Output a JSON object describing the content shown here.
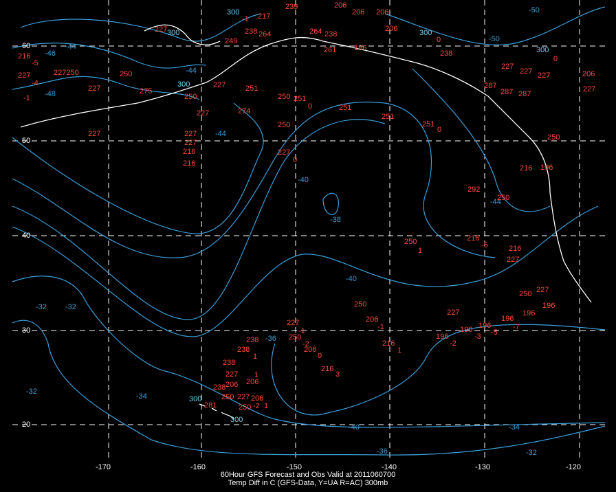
{
  "title": "60Hour GFS Forecast and Obs Valid at 2011060700",
  "subtitle": "Temp Diff in C (GFS-Data, Y=UA R=AC) 300mb",
  "lon_labels": [
    "-170",
    "-160",
    "-150",
    "-140",
    "-130",
    "-120"
  ],
  "lat_labels": [
    "60",
    "50",
    "40",
    "30",
    "20"
  ],
  "contour_labels": [
    "-46",
    "-44",
    "-48",
    "-44",
    "-44",
    "-40",
    "-38",
    "-40",
    "-36",
    "-32",
    "-32",
    "-32",
    "-34",
    "-40",
    "-36",
    "-34",
    "-32",
    "-44",
    "-50",
    "-50"
  ],
  "station_labels": [
    "217",
    "239",
    "206",
    "206",
    "206",
    "300",
    "-1",
    "227",
    "300",
    "238",
    "264",
    "249",
    "264",
    "238",
    "261",
    "196",
    "206",
    "300",
    "0",
    "238",
    "300",
    "0",
    "216",
    "-5",
    "227",
    "227250",
    "-4",
    "250",
    "227",
    "-1",
    "275",
    "300",
    "250",
    "227",
    "251",
    "250",
    "251",
    "0",
    "251",
    "274",
    "227",
    "251",
    "250",
    "251",
    "0",
    "227",
    "227",
    "227",
    "216",
    "216",
    "227",
    "0",
    "227",
    "227",
    "227",
    "206",
    "227",
    "287",
    "287",
    "287",
    "250",
    "216",
    "196",
    "292",
    "250",
    "250",
    "1",
    "216",
    "-5",
    "216",
    "227",
    "227",
    "250",
    "196",
    "196",
    "196",
    "-7",
    "227",
    "196",
    "-5",
    "196",
    "-2",
    "190",
    "-3",
    "250",
    "206",
    "-1",
    "216",
    "1",
    "227",
    "-1",
    "250",
    "-2",
    "206",
    "0",
    "216",
    "3",
    "238",
    "238",
    "1",
    "238",
    "227",
    "1",
    "206",
    "238",
    "206",
    "250",
    "227",
    "206",
    "250",
    "-2",
    "1",
    "300",
    "281",
    "300"
  ]
}
